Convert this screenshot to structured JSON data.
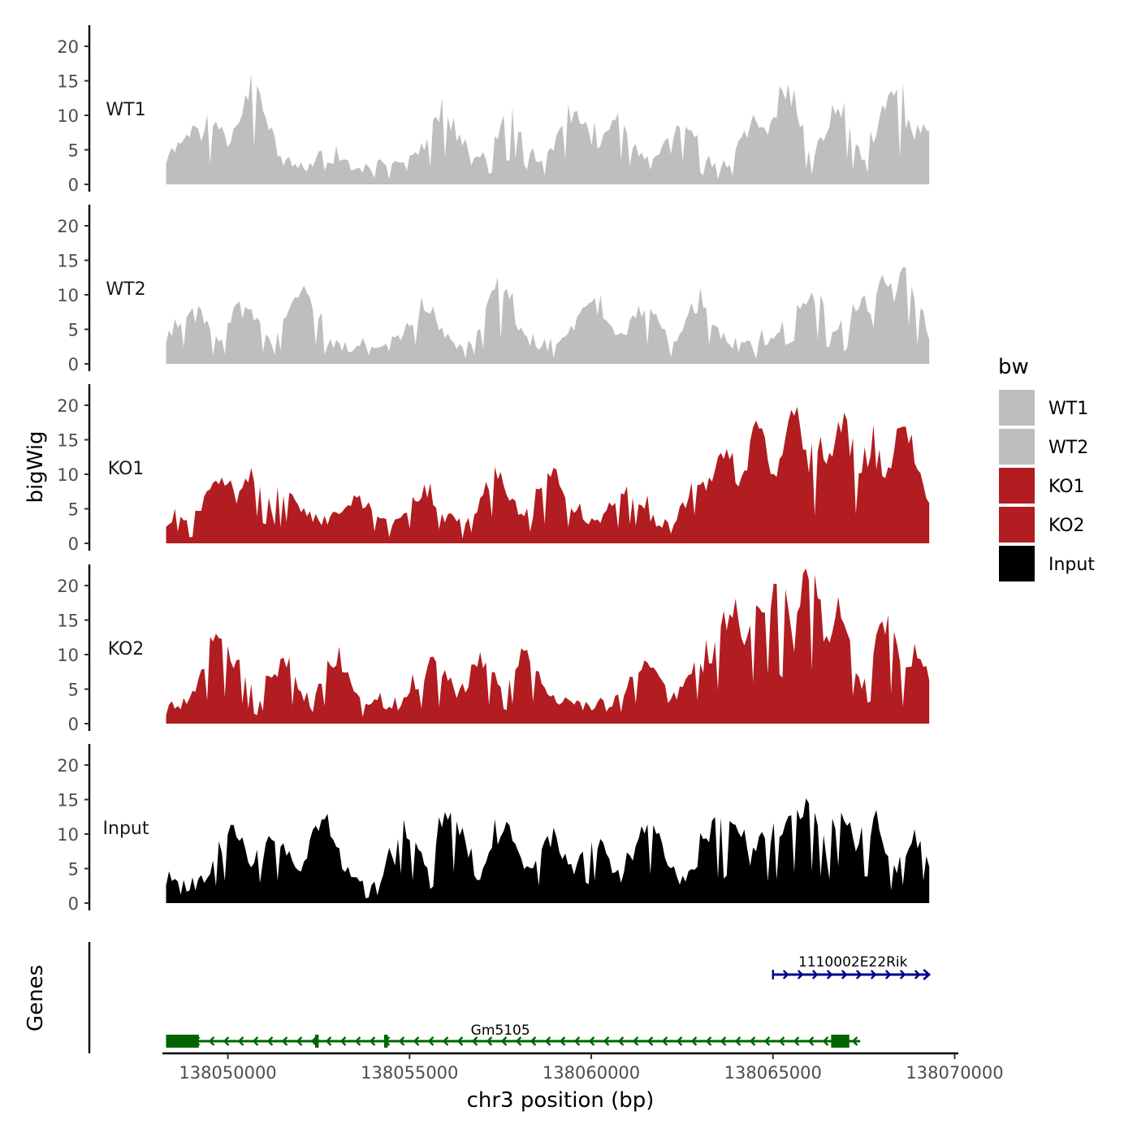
{
  "chart_data": {
    "type": "area",
    "panels": [
      {
        "name": "WT1",
        "color": "#bebebe",
        "peaks": [
          [
            138049000,
            6
          ],
          [
            138049600,
            7.5
          ],
          [
            138050700,
            13.5
          ],
          [
            138055900,
            10
          ],
          [
            138057800,
            9
          ],
          [
            138059500,
            9
          ],
          [
            138060700,
            7.5
          ],
          [
            138062500,
            7.5
          ],
          [
            138064500,
            8
          ],
          [
            138065400,
            13
          ],
          [
            138066800,
            9
          ],
          [
            138068300,
            12.5
          ],
          [
            138069200,
            7.5
          ]
        ]
      },
      {
        "name": "WT2",
        "color": "#bebebe",
        "peaks": [
          [
            138049000,
            6.5
          ],
          [
            138050500,
            7
          ],
          [
            138052000,
            9.5
          ],
          [
            138055400,
            6
          ],
          [
            138057500,
            10
          ],
          [
            138060000,
            7
          ],
          [
            138061500,
            6
          ],
          [
            138063000,
            7.5
          ],
          [
            138065600,
            7
          ],
          [
            138066100,
            9
          ],
          [
            138067400,
            7
          ],
          [
            138068100,
            10
          ],
          [
            138068600,
            12
          ]
        ]
      },
      {
        "name": "KO1",
        "color": "#b11d21",
        "peaks": [
          [
            138049800,
            8.5
          ],
          [
            138050700,
            9
          ],
          [
            138051600,
            6
          ],
          [
            138053500,
            4.5
          ],
          [
            138055400,
            6
          ],
          [
            138057400,
            8.5
          ],
          [
            138058900,
            8.5
          ],
          [
            138061000,
            6
          ],
          [
            138063000,
            8
          ],
          [
            138063600,
            12.5
          ],
          [
            138064600,
            15.5
          ],
          [
            138065600,
            19
          ],
          [
            138066200,
            13
          ],
          [
            138066900,
            17
          ],
          [
            138067800,
            12
          ],
          [
            138068600,
            16
          ]
        ]
      },
      {
        "name": "KO2",
        "color": "#b11d21",
        "peaks": [
          [
            138049700,
            11
          ],
          [
            138050200,
            7.5
          ],
          [
            138051500,
            7.5
          ],
          [
            138053000,
            7.5
          ],
          [
            138055700,
            7
          ],
          [
            138057000,
            7.5
          ],
          [
            138058200,
            8.5
          ],
          [
            138061500,
            7.5
          ],
          [
            138063000,
            7
          ],
          [
            138063800,
            16
          ],
          [
            138064600,
            18
          ],
          [
            138065100,
            22
          ],
          [
            138066000,
            22
          ],
          [
            138066800,
            15
          ],
          [
            138068100,
            14.5
          ],
          [
            138069000,
            8
          ]
        ]
      },
      {
        "name": "Input",
        "color": "#000000",
        "peaks": [
          [
            138050100,
            9
          ],
          [
            138051300,
            8
          ],
          [
            138052600,
            10.5
          ],
          [
            138054900,
            9.5
          ],
          [
            138056100,
            12
          ],
          [
            138057600,
            9
          ],
          [
            138058900,
            8
          ],
          [
            138060100,
            7.5
          ],
          [
            138061600,
            10
          ],
          [
            138063400,
            10
          ],
          [
            138063900,
            11
          ],
          [
            138064800,
            9
          ],
          [
            138065500,
            11
          ],
          [
            138066000,
            14
          ],
          [
            138066900,
            12.5
          ],
          [
            138067700,
            11
          ],
          [
            138068900,
            7.5
          ]
        ]
      }
    ],
    "panel_labels": [
      "WT1",
      "WT2",
      "KO1",
      "KO2",
      "Input"
    ],
    "ylabel": "bigWig",
    "ylim": [
      0,
      23
    ],
    "yticks": [
      "0",
      "5",
      "10",
      "15",
      "20"
    ],
    "xlabel": "chr3 position (bp)",
    "xlim": [
      138048200,
      138070100
    ],
    "signal_range": [
      138048300,
      138069300
    ],
    "xtick_values": [
      138050000,
      138055000,
      138060000,
      138065000,
      138070000
    ],
    "xtick_labels": [
      "138050000",
      "138055000",
      "138060000",
      "138065000",
      "138070000"
    ],
    "legend": {
      "title": "bw",
      "position": "right",
      "entries": [
        {
          "label": "WT1",
          "color": "#bebebe"
        },
        {
          "label": "WT2",
          "color": "#bebebe"
        },
        {
          "label": "KO1",
          "color": "#b11d21"
        },
        {
          "label": "KO2",
          "color": "#b11d21"
        },
        {
          "label": "Input",
          "color": "#000000"
        }
      ]
    },
    "genes_track": {
      "label": "Genes",
      "genes": [
        {
          "name": "1110002E22Rik",
          "strand": "+",
          "start": 138065000,
          "end": 138069300,
          "color": "#00008b",
          "exons": []
        },
        {
          "name": "Gm5105",
          "strand": "-",
          "start": 138048300,
          "end": 138067400,
          "color": "#006400",
          "exons": [
            [
              138048300,
              138049200
            ],
            [
              138052400,
              138052500
            ],
            [
              138054300,
              138054400
            ],
            [
              138066600,
              138067100
            ]
          ]
        }
      ]
    }
  }
}
